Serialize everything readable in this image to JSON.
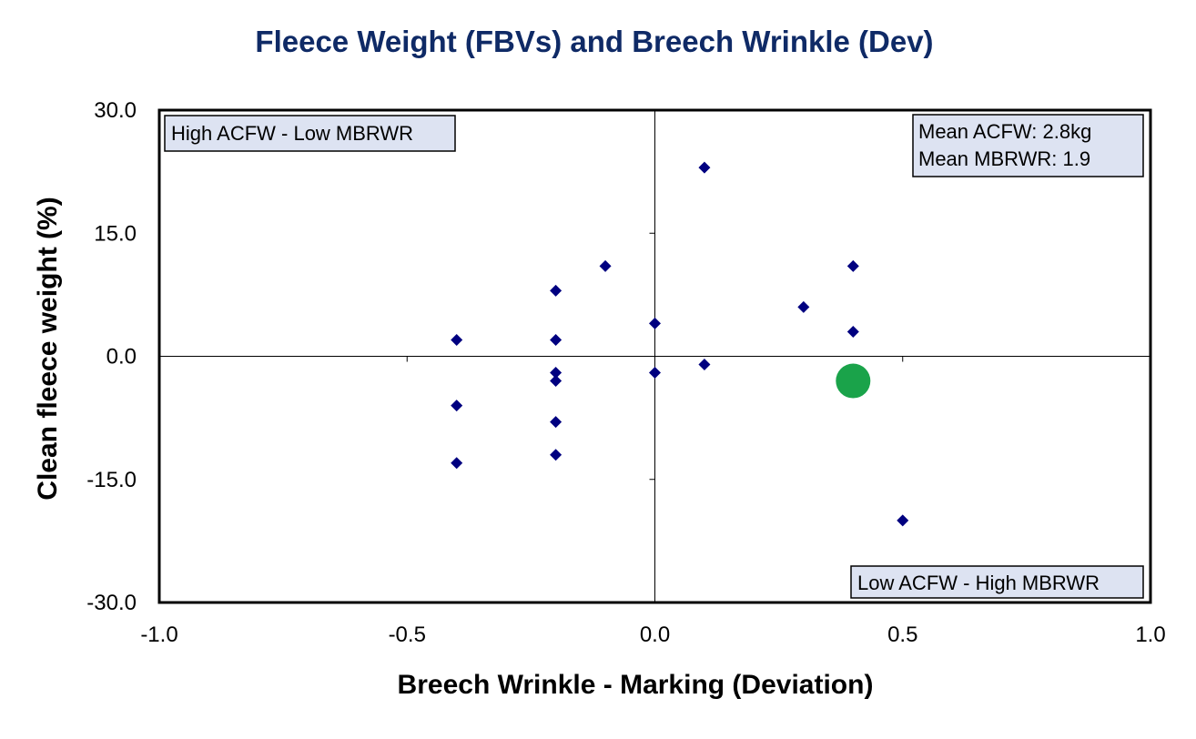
{
  "chart_data": {
    "type": "scatter",
    "title": "Fleece Weight (FBVs) and Breech Wrinkle (Dev)",
    "xlabel": "Breech Wrinkle - Marking (Deviation)",
    "ylabel": "Clean fleece weight (%)",
    "xlim": [
      -1.0,
      1.0
    ],
    "ylim": [
      -30.0,
      30.0
    ],
    "x_ticks": [
      "-1.0",
      "-0.5",
      "0.0",
      "0.5",
      "1.0"
    ],
    "y_ticks": [
      "30.0",
      "15.0",
      "0.0",
      "-15.0",
      "-30.0"
    ],
    "grid": false,
    "reference_lines": {
      "x": 0.0,
      "y": 0.0
    },
    "series": [
      {
        "marker": "diamond",
        "color": "#000080",
        "points": [
          {
            "x": 0.1,
            "y": 23.0
          },
          {
            "x": 0.4,
            "y": 11.0
          },
          {
            "x": -0.1,
            "y": 11.0
          },
          {
            "x": -0.2,
            "y": 8.0
          },
          {
            "x": 0.3,
            "y": 6.0
          },
          {
            "x": 0.0,
            "y": 4.0
          },
          {
            "x": 0.4,
            "y": 3.0
          },
          {
            "x": -0.4,
            "y": 2.0
          },
          {
            "x": -0.2,
            "y": 2.0
          },
          {
            "x": 0.1,
            "y": -1.0
          },
          {
            "x": -0.2,
            "y": -2.0
          },
          {
            "x": 0.0,
            "y": -2.0
          },
          {
            "x": -0.2,
            "y": -3.0
          },
          {
            "x": -0.4,
            "y": -6.0
          },
          {
            "x": -0.2,
            "y": -8.0
          },
          {
            "x": -0.2,
            "y": -12.0
          },
          {
            "x": -0.4,
            "y": -13.0
          },
          {
            "x": 0.5,
            "y": -20.0
          }
        ]
      },
      {
        "marker": "circle",
        "color": "#1aa34a",
        "points": [
          {
            "x": 0.4,
            "y": -3.0
          }
        ]
      }
    ],
    "annotations": {
      "top_left": "High ACFW - Low MBRWR",
      "top_right_line1": "Mean ACFW: 2.8kg",
      "top_right_line2": "Mean MBRWR: 1.9",
      "bottom_right": "Low ACFW - High MBRWR"
    },
    "colors": {
      "title": "#0f2a66",
      "annotation_fill": "#dde3f2"
    }
  }
}
